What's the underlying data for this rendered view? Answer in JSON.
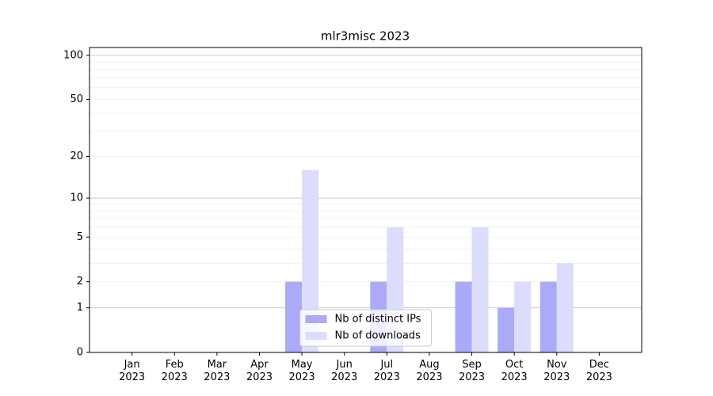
{
  "chart_data": {
    "type": "bar",
    "title": "mlr3misc 2023",
    "categories": [
      "Jan\n2023",
      "Feb\n2023",
      "Mar\n2023",
      "Apr\n2023",
      "May\n2023",
      "Jun\n2023",
      "Jul\n2023",
      "Aug\n2023",
      "Sep\n2023",
      "Oct\n2023",
      "Nov\n2023",
      "Dec\n2023"
    ],
    "series": [
      {
        "name": "Nb of distinct IPs",
        "color": "#aaaaf8",
        "values": [
          0,
          0,
          0,
          0,
          2,
          0,
          2,
          0,
          2,
          1,
          2,
          0
        ]
      },
      {
        "name": "Nb of downloads",
        "color": "#dcdcfc",
        "values": [
          0,
          0,
          0,
          0,
          16,
          0,
          6,
          0,
          6,
          2,
          3,
          0
        ]
      }
    ],
    "yscale": "log1p",
    "ylim": [
      0,
      113
    ],
    "yticks": [
      0,
      1,
      2,
      5,
      10,
      20,
      50,
      100
    ],
    "grid": {
      "major": [
        1,
        10,
        100
      ],
      "minor": [
        2,
        3,
        4,
        5,
        6,
        7,
        8,
        9,
        20,
        30,
        40,
        50,
        60,
        70,
        80,
        90
      ]
    },
    "legend": "lower center"
  }
}
